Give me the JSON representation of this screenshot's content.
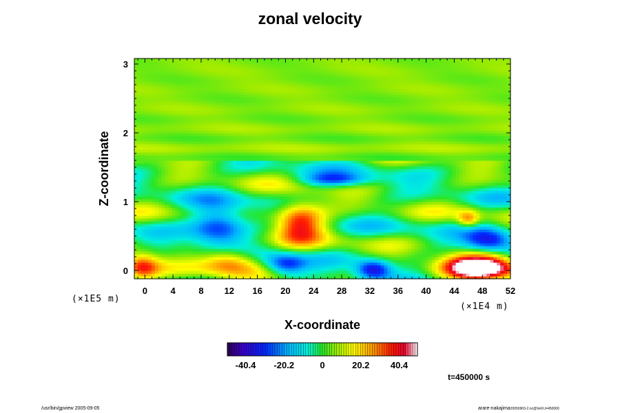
{
  "title": "zonal velocity",
  "chart_data": {
    "type": "heatmap",
    "title": "zonal velocity",
    "xlabel": "X-coordinate",
    "ylabel": "Z-coordinate",
    "x_scale_label": "(×1E4 m)",
    "y_scale_label": "(×1E5 m)",
    "xlim": [
      -1.5,
      52
    ],
    "ylim": [
      -0.12,
      3.08
    ],
    "x_ticks": [
      0,
      4,
      8,
      12,
      16,
      20,
      24,
      28,
      32,
      36,
      40,
      44,
      48,
      52
    ],
    "y_ticks": [
      0,
      1,
      2,
      3
    ],
    "colorbar": {
      "range": [
        -50,
        50
      ],
      "ticks": [
        -40.4,
        -20.2,
        0,
        20.2,
        40.4
      ],
      "tick_labels": [
        "-40.4",
        "-20.2",
        "0",
        "20.2",
        "40.4"
      ]
    },
    "features": [
      {
        "x": 47.5,
        "z": 0.05,
        "value": 60,
        "rx": 5,
        "rz": 0.2
      },
      {
        "x": 22,
        "z": 0.72,
        "value": 40,
        "rx": 3.5,
        "rz": 0.3
      },
      {
        "x": 12,
        "z": 0.15,
        "value": 32,
        "rx": 4,
        "rz": 0.2
      },
      {
        "x": -0.5,
        "z": 0.05,
        "value": 35,
        "rx": 2.5,
        "rz": 0.2
      },
      {
        "x": 10.5,
        "z": 0.65,
        "value": -36,
        "rx": 4,
        "rz": 0.3
      },
      {
        "x": 49,
        "z": 0.45,
        "value": -36,
        "rx": 3.5,
        "rz": 0.18
      },
      {
        "x": 20,
        "z": 0.08,
        "value": -30,
        "rx": 3,
        "rz": 0.16
      },
      {
        "x": 32.5,
        "z": 0.02,
        "value": -38,
        "rx": 2.5,
        "rz": 0.14
      },
      {
        "x": 27,
        "z": 1.32,
        "value": -26,
        "rx": 5,
        "rz": 0.1
      },
      {
        "x": 46,
        "z": 0.75,
        "value": 24,
        "rx": 1.5,
        "rz": 0.12
      }
    ],
    "time_label": "t=450000 s"
  },
  "footer": {
    "left": "/usr/bin/gpview 2005-09-05",
    "right_main": "arare-nakajima",
    "right_sub": "20050903-2.nc@VelX,t=450000"
  }
}
